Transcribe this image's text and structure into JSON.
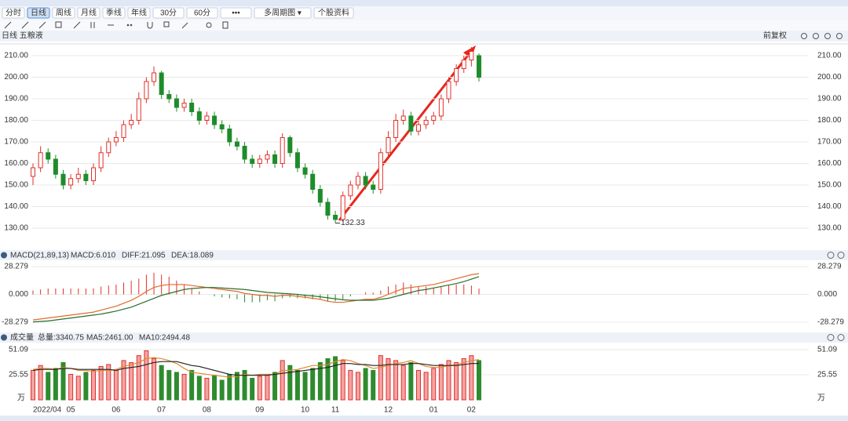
{
  "toolbar": [
    "分时",
    "日线",
    "周线",
    "月线",
    "季线",
    "年线",
    "30分",
    "60分",
    "•••",
    "多周期图 ▾",
    "个股资料"
  ],
  "stock_title": "日线 五粮液",
  "adjust": "前复权",
  "chart_data": [
    {
      "type": "candlestick",
      "up_color": "#e0312b",
      "down_color": "#1e8c2b",
      "open": [
        154,
        158,
        165,
        162,
        155,
        150,
        153,
        155,
        152,
        158,
        165,
        170,
        172,
        178,
        180,
        190,
        198,
        202,
        192,
        190,
        186,
        188,
        184,
        180,
        182,
        178,
        176,
        170,
        168,
        162,
        160,
        162,
        164,
        160,
        172,
        165,
        158,
        155,
        148,
        142,
        136,
        134,
        145,
        150,
        154,
        150,
        148,
        165,
        172,
        180,
        182,
        175,
        178,
        180,
        182,
        190,
        198,
        204,
        208,
        210
      ],
      "high": [
        160,
        168,
        167,
        164,
        157,
        155,
        158,
        157,
        160,
        168,
        172,
        175,
        180,
        183,
        193,
        200,
        205,
        203,
        194,
        192,
        190,
        190,
        186,
        184,
        184,
        180,
        178,
        172,
        170,
        164,
        164,
        166,
        166,
        174,
        173,
        167,
        160,
        157,
        150,
        144,
        138,
        147,
        152,
        156,
        156,
        152,
        167,
        175,
        183,
        185,
        184,
        180,
        182,
        184,
        192,
        200,
        206,
        210,
        214,
        211
      ],
      "low": [
        150,
        156,
        160,
        153,
        148,
        148,
        151,
        150,
        150,
        156,
        163,
        168,
        170,
        176,
        178,
        188,
        196,
        190,
        188,
        184,
        184,
        182,
        178,
        178,
        176,
        174,
        168,
        166,
        160,
        158,
        158,
        160,
        158,
        158,
        163,
        156,
        153,
        146,
        140,
        134,
        132.33,
        133,
        143,
        148,
        148,
        146,
        146,
        163,
        170,
        178,
        173,
        173,
        176,
        178,
        180,
        188,
        196,
        202,
        205,
        198
      ],
      "close": [
        158,
        165,
        162,
        155,
        150,
        153,
        155,
        152,
        158,
        165,
        170,
        172,
        178,
        180,
        190,
        198,
        202,
        192,
        190,
        186,
        188,
        184,
        180,
        182,
        178,
        176,
        170,
        168,
        162,
        160,
        162,
        164,
        160,
        172,
        165,
        158,
        155,
        148,
        142,
        136,
        134,
        145,
        150,
        154,
        150,
        148,
        165,
        172,
        180,
        182,
        175,
        178,
        180,
        182,
        190,
        198,
        204,
        208,
        212,
        200
      ],
      "ylim": [
        125,
        215
      ],
      "yticks": [
        {
          "value": 130,
          "label": "130.00"
        },
        {
          "value": 140,
          "label": "140.00"
        },
        {
          "value": 150,
          "label": "150.00"
        },
        {
          "value": 160,
          "label": "160.00"
        },
        {
          "value": 170,
          "label": "170.00"
        },
        {
          "value": 180,
          "label": "180.00"
        },
        {
          "value": 190,
          "label": "190.00"
        },
        {
          "value": 200,
          "label": "200.00"
        },
        {
          "value": 210,
          "label": "210.00"
        }
      ],
      "xticks": [
        {
          "value": 0,
          "label": "2022/04"
        },
        {
          "value": 5,
          "label": "05"
        },
        {
          "value": 11,
          "label": "06"
        },
        {
          "value": 17,
          "label": "07"
        },
        {
          "value": 23,
          "label": "08"
        },
        {
          "value": 30,
          "label": "09"
        },
        {
          "value": 36,
          "label": "10"
        },
        {
          "value": 40,
          "label": "11"
        },
        {
          "value": 47,
          "label": "12"
        },
        {
          "value": 53,
          "label": "01"
        },
        {
          "value": 58,
          "label": "02"
        }
      ],
      "grid": true
    },
    {
      "type": "macd",
      "title": "MACD(21,89,13)",
      "macd_label": "MACD:6.010",
      "diff_label": "DIFF:21.095",
      "dea_label": "DEA:18.089",
      "series": [
        {
          "name": "DIFF",
          "color": "#e06a2c",
          "values": [
            -26,
            -25,
            -24,
            -23,
            -22,
            -21,
            -20,
            -19,
            -18,
            -16,
            -14,
            -12,
            -9,
            -6,
            -2,
            3,
            7,
            9,
            10,
            10,
            10,
            9,
            8,
            7,
            6,
            5,
            4,
            3,
            1,
            0,
            -1,
            -1,
            -2,
            -1,
            -1,
            -2,
            -3,
            -4,
            -5,
            -7,
            -8,
            -8,
            -7,
            -6,
            -5,
            -5,
            -3,
            0,
            3,
            6,
            7,
            8,
            9,
            10,
            12,
            14,
            16,
            18,
            20,
            21.095
          ]
        },
        {
          "name": "DEA",
          "color": "#2a6e2a",
          "values": [
            -28,
            -27.5,
            -27,
            -26,
            -25,
            -24,
            -23,
            -22,
            -21,
            -20,
            -18.5,
            -17,
            -15,
            -13,
            -10,
            -7,
            -4,
            -1,
            1,
            3,
            5,
            6,
            6.5,
            7,
            7,
            6.5,
            6,
            5.5,
            5,
            4,
            3,
            2,
            1.5,
            1,
            0.5,
            0,
            -1,
            -1.5,
            -2.5,
            -3.5,
            -4.5,
            -5.5,
            -6,
            -6,
            -6,
            -6,
            -5,
            -4,
            -2,
            0,
            2,
            4,
            5,
            6.5,
            8,
            9.5,
            11,
            13,
            15.5,
            18.089
          ]
        }
      ],
      "hist": [
        4,
        5,
        6,
        6,
        6,
        6,
        6,
        6,
        6,
        8,
        9,
        10,
        12,
        14,
        16,
        20,
        22,
        20,
        18,
        14,
        10,
        6,
        3,
        0,
        -2,
        -3,
        -4,
        -5,
        -8,
        -8,
        -8,
        -6,
        -7,
        -4,
        -3,
        -4,
        -4,
        -5,
        -5,
        -7,
        -7,
        -5,
        -2,
        0,
        2,
        2,
        4,
        8,
        10,
        12,
        10,
        8,
        8,
        7,
        8,
        9,
        10,
        10,
        9,
        6.01
      ],
      "up_color": "#e0312b",
      "down_color": "#1e8c2b",
      "ylim": [
        -33.85,
        33.85
      ],
      "yticks": [
        -28.279,
        {
          "value": 0,
          "label": "0.000"
        },
        28.279
      ]
    },
    {
      "type": "volume",
      "title": "成交量",
      "total_label": "总量:3340.75",
      "ma5_label": "MA5:2461.00",
      "ma10_label": "MA10:2494.48",
      "unit": "万",
      "values": [
        30,
        35,
        28,
        32,
        38,
        26,
        24,
        28,
        30,
        34,
        36,
        30,
        40,
        38,
        45,
        50,
        42,
        35,
        30,
        28,
        26,
        30,
        24,
        22,
        25,
        20,
        26,
        28,
        30,
        22,
        24,
        26,
        28,
        40,
        35,
        30,
        28,
        32,
        38,
        42,
        44,
        40,
        30,
        28,
        32,
        30,
        45,
        42,
        40,
        35,
        38,
        30,
        28,
        32,
        36,
        40,
        38,
        42,
        45,
        40
      ],
      "series": [
        {
          "name": "MA5",
          "color": "#e08a2c",
          "values": [
            31,
            32,
            32,
            31,
            33,
            32,
            30,
            30,
            29,
            30,
            30,
            31,
            34,
            36,
            38,
            42,
            43,
            42,
            40,
            37,
            32,
            28,
            27,
            26,
            25,
            24,
            23,
            24,
            26,
            25,
            26,
            26,
            26,
            30,
            30,
            31,
            33,
            35,
            35,
            36,
            39,
            41,
            40,
            37,
            35,
            32,
            33,
            35,
            37,
            38,
            40,
            37,
            34,
            33,
            33,
            35,
            36,
            38,
            40,
            41
          ]
        },
        {
          "name": "MA10",
          "color": "#222222",
          "values": [
            30,
            31,
            31,
            31,
            32,
            32,
            31,
            31,
            31,
            31,
            31,
            30,
            32,
            33,
            34,
            36,
            38,
            39,
            39,
            39,
            37,
            35,
            34,
            32,
            30,
            28,
            26,
            25,
            25,
            25,
            25,
            25,
            26,
            27,
            28,
            29,
            30,
            31,
            32,
            33,
            35,
            37,
            37,
            36,
            36,
            35,
            35,
            36,
            36,
            36,
            37,
            37,
            36,
            35,
            35,
            35,
            35,
            36,
            37,
            37
          ]
        }
      ],
      "ylim": [
        0,
        57.5
      ],
      "yticks": [
        25.55,
        51.09
      ]
    }
  ]
}
